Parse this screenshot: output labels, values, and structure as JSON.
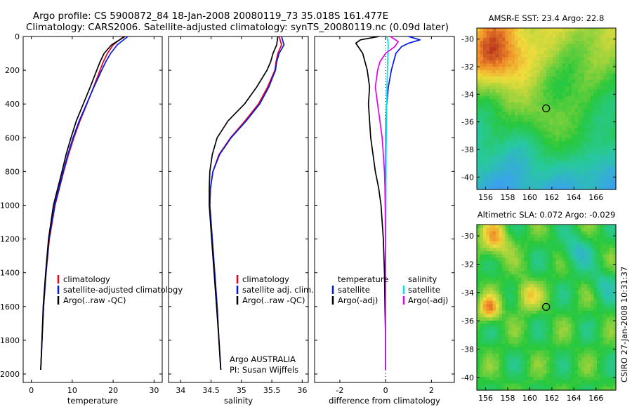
{
  "figure": {
    "title_line1": "Argo profile: CS 5900872_84 18-Jan-2008 20080119_73 35.018S 161.477E",
    "title_line2": "Climatology: CARS2006. Satellite-adjusted climatology: synTS_20080119.nc (0.09d later)",
    "side_note": "CSIRO 27-Jan-2008 10:31:37",
    "argo_label": "Argo AUSTRALIA",
    "pi_label": "PI: Susan Wijffels"
  },
  "colors": {
    "climatology": "#e6001a",
    "satellite": "#0019e6",
    "argo": "#000000",
    "satellite_sal": "#00e6e6",
    "argo_sal": "#e600e6"
  },
  "chart_data": [
    {
      "type": "line",
      "name": "temperature profile",
      "xlabel": "temperature",
      "xlim": [
        -2,
        32
      ],
      "ylim": [
        2050,
        0
      ],
      "xticks": [
        "0",
        "10",
        "20",
        "30"
      ],
      "yticks": [
        "0",
        "200",
        "400",
        "600",
        "800",
        "1000",
        "1200",
        "1400",
        "1600",
        "1800",
        "2000"
      ],
      "legend": [
        "climatology",
        "satellite-adjusted climatology",
        "Argo(..raw -QC)"
      ],
      "series": [
        {
          "name": "climatology",
          "color": "red",
          "depth": [
            0,
            50,
            100,
            150,
            200,
            300,
            400,
            500,
            600,
            700,
            800,
            1000,
            1200,
            1400,
            1600,
            1800,
            1975
          ],
          "values": [
            22.6,
            20.0,
            18.6,
            17.6,
            16.8,
            15.2,
            13.6,
            11.9,
            10.4,
            9.1,
            7.9,
            5.8,
            4.4,
            3.6,
            3.0,
            2.6,
            2.3
          ]
        },
        {
          "name": "satellite-adjusted climatology",
          "color": "blue",
          "depth": [
            0,
            50,
            100,
            150,
            200,
            300,
            400,
            500,
            600,
            700,
            800,
            1000,
            1200,
            1400,
            1600,
            1800,
            1975
          ],
          "values": [
            23.6,
            21.0,
            19.4,
            18.2,
            17.2,
            15.3,
            13.5,
            11.7,
            10.2,
            8.9,
            7.8,
            5.7,
            4.3,
            3.6,
            3.0,
            2.6,
            2.3
          ]
        },
        {
          "name": "Argo(..raw -QC)",
          "color": "black",
          "depth": [
            0,
            50,
            100,
            150,
            200,
            300,
            400,
            500,
            600,
            700,
            800,
            1000,
            1200,
            1400,
            1600,
            1800,
            1975
          ],
          "values": [
            22.9,
            19.6,
            17.8,
            16.8,
            16.0,
            14.4,
            12.7,
            11.0,
            9.7,
            8.5,
            7.5,
            5.4,
            4.2,
            3.5,
            2.9,
            2.6,
            2.3
          ]
        }
      ]
    },
    {
      "type": "line",
      "name": "salinity profile",
      "xlabel": "salinity",
      "xlim": [
        33.8,
        36.1
      ],
      "ylim": [
        2050,
        0
      ],
      "xticks": [
        "34",
        "34.5",
        "35",
        "35.5",
        "36"
      ],
      "legend": [
        "climatology",
        "satellite adj. clim.",
        "Argo(..raw -QC)"
      ],
      "series": [
        {
          "name": "climatology",
          "color": "red",
          "depth": [
            0,
            50,
            100,
            150,
            200,
            300,
            400,
            500,
            600,
            700,
            800,
            900,
            1000,
            1200,
            1400,
            1600,
            1800,
            1975
          ],
          "values": [
            35.62,
            35.66,
            35.6,
            35.57,
            35.55,
            35.43,
            35.28,
            35.06,
            34.82,
            34.63,
            34.53,
            34.49,
            34.48,
            34.52,
            34.56,
            34.6,
            34.63,
            34.66
          ]
        },
        {
          "name": "satellite adj. clim.",
          "color": "blue",
          "depth": [
            0,
            50,
            100,
            150,
            200,
            300,
            400,
            500,
            600,
            700,
            800,
            900,
            1000,
            1200,
            1400,
            1600,
            1800,
            1975
          ],
          "values": [
            35.66,
            35.7,
            35.62,
            35.58,
            35.56,
            35.45,
            35.3,
            35.08,
            34.83,
            34.64,
            34.53,
            34.49,
            34.48,
            34.52,
            34.56,
            34.6,
            34.63,
            34.66
          ]
        },
        {
          "name": "Argo(..raw -QC)",
          "color": "black",
          "depth": [
            0,
            50,
            100,
            150,
            200,
            300,
            400,
            500,
            600,
            700,
            800,
            900,
            1000,
            1200,
            1400,
            1600,
            1800,
            1975
          ],
          "values": [
            35.6,
            35.58,
            35.52,
            35.48,
            35.42,
            35.25,
            35.05,
            34.78,
            34.6,
            34.52,
            34.48,
            34.47,
            34.47,
            34.51,
            34.55,
            34.59,
            34.63,
            34.66
          ]
        }
      ]
    },
    {
      "type": "line",
      "name": "difference profile",
      "xlabel": "difference from climatology",
      "xlim": [
        -3.1,
        3.0
      ],
      "ylim": [
        2050,
        0
      ],
      "xticks": [
        "-2",
        "0",
        "2"
      ],
      "legend_temperature": {
        "heading": "temperature",
        "items": [
          "satellite",
          "Argo(-adj)"
        ]
      },
      "legend_salinity": {
        "heading": "salinity",
        "items": [
          "satellite",
          "Argo(-adj)"
        ]
      },
      "series": [
        {
          "name": "temperature satellite",
          "color": "blue",
          "depth": [
            0,
            20,
            40,
            60,
            100,
            150,
            200,
            300,
            400,
            500,
            600,
            800,
            1000,
            1400,
            1800,
            1975
          ],
          "values": [
            1.0,
            1.5,
            1.0,
            0.7,
            0.45,
            0.35,
            0.25,
            0.12,
            0.05,
            0.02,
            0.01,
            0.0,
            0.0,
            0.0,
            0.0,
            0.0
          ]
        },
        {
          "name": "temperature Argo(-adj)",
          "color": "black",
          "depth": [
            0,
            20,
            40,
            60,
            100,
            150,
            200,
            300,
            400,
            500,
            600,
            700,
            800,
            900,
            1000,
            1200,
            1400,
            1600,
            1800,
            1975
          ],
          "values": [
            -0.3,
            -1.1,
            -1.3,
            -1.2,
            -1.0,
            -0.9,
            -0.8,
            -0.7,
            -0.75,
            -0.7,
            -0.65,
            -0.55,
            -0.45,
            -0.3,
            -0.2,
            -0.1,
            -0.05,
            -0.03,
            0.0,
            0.0
          ]
        },
        {
          "name": "salinity satellite",
          "color": "cyan",
          "depth": [
            0,
            50,
            100,
            200,
            300,
            500,
            700,
            1000,
            1400,
            1800,
            1975
          ],
          "values": [
            0.06,
            0.12,
            0.1,
            0.08,
            0.06,
            0.04,
            0.02,
            0.01,
            0.0,
            0.0,
            0.0
          ]
        },
        {
          "name": "salinity Argo(-adj)",
          "color": "magenta",
          "depth": [
            0,
            30,
            60,
            100,
            150,
            200,
            300,
            400,
            500,
            600,
            700,
            800,
            900,
            1000,
            1200,
            1400,
            1800,
            1975
          ],
          "values": [
            0.2,
            0.55,
            0.4,
            0.0,
            -0.25,
            -0.35,
            -0.45,
            -0.35,
            -0.25,
            -0.15,
            -0.1,
            -0.05,
            -0.03,
            -0.02,
            0.0,
            0.0,
            0.0,
            0.0
          ]
        }
      ]
    },
    {
      "type": "heatmap",
      "name": "sst map",
      "title": "AMSR-E SST: 23.4 Argo: 22.8",
      "xlim": [
        155.2,
        167.8
      ],
      "ylim": [
        -40.9,
        -29.2
      ],
      "xticks": [
        "156",
        "158",
        "160",
        "162",
        "164",
        "166"
      ],
      "yticks": [
        "-30",
        "-32",
        "-34",
        "-36",
        "-38",
        "-40"
      ],
      "marker": {
        "lon": 161.48,
        "lat": -35.02
      }
    },
    {
      "type": "heatmap",
      "name": "sla map",
      "title": "Altimetric SLA: 0.072 Argo: -0.029",
      "xlim": [
        155.2,
        167.8
      ],
      "ylim": [
        -40.9,
        -29.2
      ],
      "xticks": [
        "156",
        "158",
        "160",
        "162",
        "164",
        "166"
      ],
      "yticks": [
        "-30",
        "-32",
        "-34",
        "-36",
        "-38",
        "-40"
      ],
      "marker": {
        "lon": 161.48,
        "lat": -35.02
      }
    }
  ]
}
